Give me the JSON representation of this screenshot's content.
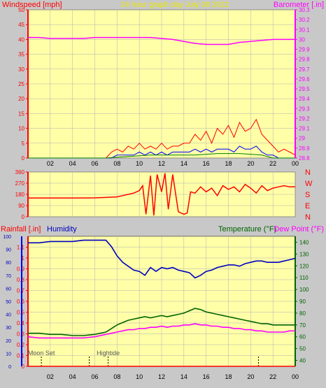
{
  "title": "24 hour graph day   July 08 2022",
  "colors": {
    "bg": "#c8c8c8",
    "plot_bg": "#ffffa8",
    "grid": "#b0b0b0",
    "red": "#ff0000",
    "blue": "#0000ff",
    "magenta": "#ff00ff",
    "green": "#006400",
    "darkgreen": "#008000",
    "navy": "#0000c0",
    "title": "#e8e800"
  },
  "chart_data": [
    {
      "id": "wind-baro",
      "type": "line",
      "left_label": "Windspeed [mph]",
      "right_label": "Barometer [.in]",
      "y_left_range": [
        0,
        50
      ],
      "y_left_ticks": [
        "0",
        "5",
        "10",
        "15",
        "20",
        "25",
        "30",
        "35",
        "40",
        "45",
        "50"
      ],
      "y_right_range": [
        28.8,
        30.3
      ],
      "y_right_ticks": [
        "28.8",
        "28.9",
        "29",
        "29.1",
        "29.2",
        "29.3",
        "29.4",
        "29.5",
        "29.6",
        "29.7",
        "29.8",
        "29.9",
        "30",
        "30.1",
        "30.2",
        "30.3"
      ],
      "x_ticks": [
        "02",
        "04",
        "06",
        "08",
        "10",
        "12",
        "14",
        "16",
        "18",
        "20",
        "22",
        "00"
      ],
      "series": [
        {
          "name": "Barometer",
          "axis": "right",
          "color": "magenta",
          "x": [
            0,
            1,
            2,
            3,
            4,
            5,
            6,
            7,
            8,
            9,
            10,
            11,
            12,
            13,
            14,
            15,
            16,
            17,
            18,
            19,
            20,
            21,
            22,
            23,
            24
          ],
          "y": [
            30.02,
            30.02,
            30.01,
            30.01,
            30.01,
            30.01,
            30.02,
            30.02,
            30.02,
            30.02,
            30.02,
            30.02,
            30.01,
            30.0,
            29.98,
            29.96,
            29.95,
            29.95,
            29.95,
            29.97,
            29.98,
            29.99,
            30.0,
            30.0,
            30.0
          ]
        },
        {
          "name": "Wind gust",
          "axis": "left",
          "color": "red",
          "x": [
            0,
            1,
            2,
            3,
            4,
            5,
            6,
            7,
            7.5,
            8,
            8.5,
            9,
            9.5,
            10,
            10.5,
            11,
            11.5,
            12,
            12.5,
            13,
            13.5,
            14,
            14.5,
            15,
            15.5,
            16,
            16.5,
            17,
            17.5,
            18,
            18.5,
            19,
            19.5,
            20,
            20.5,
            21,
            21.5,
            22,
            22.5,
            23,
            23.5,
            24
          ],
          "y": [
            0,
            0,
            0,
            0,
            0,
            0,
            0,
            0,
            2,
            3,
            2,
            4,
            3,
            5,
            3,
            4,
            3,
            5,
            3,
            4,
            4,
            5,
            5,
            8,
            6,
            9,
            5,
            10,
            8,
            11,
            7,
            12,
            9,
            10,
            13,
            8,
            6,
            4,
            2,
            3,
            2,
            1
          ]
        },
        {
          "name": "Wind average",
          "axis": "left",
          "color": "blue",
          "x": [
            0,
            1,
            2,
            3,
            4,
            5,
            6,
            7,
            7.5,
            8,
            8.5,
            9,
            9.5,
            10,
            10.5,
            11,
            11.5,
            12,
            12.5,
            13,
            13.5,
            14,
            14.5,
            15,
            15.5,
            16,
            16.5,
            17,
            17.5,
            18,
            18.5,
            19,
            19.5,
            20,
            20.5,
            21,
            21.5,
            22,
            22.5,
            23,
            23.5,
            24
          ],
          "y": [
            0,
            0,
            0,
            0,
            0,
            0,
            0,
            0,
            0,
            1,
            1,
            1,
            1,
            2,
            1,
            2,
            1,
            2,
            1,
            2,
            2,
            2,
            2,
            3,
            2,
            3,
            2,
            3,
            3,
            3,
            2,
            4,
            3,
            3,
            4,
            2,
            1,
            1,
            0,
            0,
            0,
            0
          ]
        },
        {
          "name": "Wind lull",
          "axis": "left",
          "color": "darkgreen",
          "x": [
            0,
            7,
            9,
            11,
            13,
            15,
            17,
            19,
            21,
            22,
            24
          ],
          "y": [
            0,
            0,
            0.5,
            1,
            1,
            1,
            1.5,
            1.5,
            1,
            0,
            0
          ]
        }
      ]
    },
    {
      "id": "direction",
      "type": "line",
      "left_label": "",
      "y_left_range": [
        0,
        360
      ],
      "y_left_ticks": [
        "0",
        "90",
        "180",
        "270",
        "360"
      ],
      "right_letters": [
        "N",
        "W",
        "S",
        "E",
        "N"
      ],
      "series": [
        {
          "name": "Wind direction",
          "color": "red",
          "x": [
            0,
            2,
            4,
            6,
            7,
            8,
            8.5,
            9,
            9.5,
            10,
            10.3,
            10.6,
            11,
            11.3,
            11.6,
            12,
            12.3,
            12.6,
            13,
            13.5,
            14,
            14.3,
            14.6,
            15,
            15.5,
            16,
            16.5,
            17,
            17.5,
            18,
            18.5,
            19,
            19.5,
            20,
            20.5,
            21,
            21.5,
            22,
            22.5,
            23,
            23.5,
            24
          ],
          "y": [
            150,
            150,
            150,
            152,
            155,
            160,
            170,
            180,
            190,
            210,
            250,
            20,
            330,
            10,
            340,
            200,
            350,
            60,
            340,
            40,
            20,
            30,
            200,
            190,
            240,
            200,
            230,
            170,
            250,
            220,
            240,
            200,
            260,
            230,
            190,
            250,
            210,
            230,
            240,
            250,
            240,
            240
          ]
        }
      ]
    },
    {
      "id": "rain-humidity-temp",
      "type": "line",
      "left_label_1": "Rainfall [.in]",
      "left_label_2": "Humidity",
      "right_label_1": "Temperature (°F)",
      "right_label_2": "Dew Point (°F)",
      "y_left_range": [
        0,
        1.2
      ],
      "y_left_ticks": [
        "0",
        "0.1",
        "0.2",
        "0.3",
        "0.4",
        "0.5",
        "0.6",
        "0.7",
        "0.8",
        "0.9",
        "1",
        "1.1"
      ],
      "y_hum_range": [
        0,
        100
      ],
      "y_hum_ticks": [
        "0",
        "10",
        "20",
        "30",
        "40",
        "50",
        "60",
        "70",
        "80",
        "90",
        "100"
      ],
      "y_right_range": [
        35,
        145
      ],
      "y_right_ticks": [
        "40",
        "50",
        "60",
        "70",
        "80",
        "90",
        "100",
        "110",
        "120",
        "130",
        "140"
      ],
      "x_ticks": [
        "02",
        "04",
        "06",
        "08",
        "10",
        "12",
        "14",
        "16",
        "18",
        "20",
        "22",
        "00"
      ],
      "markers": [
        {
          "label": "Moon Set",
          "x": 1.2
        },
        {
          "label": "Hightide",
          "x": 7.2
        }
      ],
      "series": [
        {
          "name": "Humidity",
          "axis": "hum",
          "color": "navy",
          "x": [
            0,
            1,
            2,
            3,
            4,
            5,
            6,
            7,
            7.5,
            8,
            8.5,
            9,
            9.5,
            10,
            10.5,
            11,
            11.5,
            12,
            12.5,
            13,
            13.5,
            14,
            14.5,
            15,
            15.5,
            16,
            16.5,
            17,
            17.5,
            18,
            18.5,
            19,
            19.5,
            20,
            20.5,
            21,
            21.5,
            22,
            22.5,
            23,
            23.5,
            24
          ],
          "y": [
            95,
            95,
            96,
            96,
            96,
            97,
            97,
            97,
            92,
            85,
            80,
            77,
            74,
            73,
            70,
            76,
            73,
            76,
            75,
            76,
            74,
            73,
            72,
            68,
            70,
            73,
            74,
            76,
            77,
            78,
            78,
            77,
            79,
            80,
            81,
            81,
            80,
            80,
            80,
            81,
            82,
            83
          ]
        },
        {
          "name": "Temperature",
          "axis": "right",
          "color": "green",
          "x": [
            0,
            1,
            2,
            3,
            4,
            5,
            6,
            7,
            7.5,
            8,
            8.5,
            9,
            9.5,
            10,
            10.5,
            11,
            11.5,
            12,
            12.5,
            13,
            13.5,
            14,
            14.5,
            15,
            15.5,
            16,
            16.5,
            17,
            17.5,
            18,
            18.5,
            19,
            19.5,
            20,
            20.5,
            21,
            21.5,
            22,
            22.5,
            23,
            23.5,
            24
          ],
          "y": [
            63,
            63,
            62,
            62,
            61,
            61,
            62,
            64,
            67,
            70,
            72,
            74,
            75,
            76,
            77,
            76,
            77,
            78,
            77,
            78,
            79,
            80,
            82,
            84,
            83,
            81,
            80,
            79,
            78,
            77,
            76,
            75,
            74,
            73,
            72,
            71,
            71,
            70,
            70,
            70,
            70,
            70
          ]
        },
        {
          "name": "Dew Point",
          "axis": "right",
          "color": "magenta",
          "x": [
            0,
            1,
            2,
            3,
            4,
            5,
            6,
            7,
            7.5,
            8,
            8.5,
            9,
            9.5,
            10,
            10.5,
            11,
            11.5,
            12,
            12.5,
            13,
            13.5,
            14,
            14.5,
            15,
            15.5,
            16,
            16.5,
            17,
            17.5,
            18,
            18.5,
            19,
            19.5,
            20,
            20.5,
            21,
            21.5,
            22,
            22.5,
            23,
            23.5,
            24
          ],
          "y": [
            60,
            59,
            59,
            59,
            59,
            59,
            60,
            62,
            63,
            64,
            65,
            66,
            66,
            67,
            67,
            68,
            68,
            69,
            68,
            69,
            69,
            70,
            70,
            71,
            70,
            70,
            69,
            69,
            68,
            68,
            67,
            67,
            66,
            66,
            65,
            65,
            64,
            64,
            64,
            64,
            65,
            65
          ]
        },
        {
          "name": "Rainfall",
          "axis": "left",
          "color": "red",
          "x": [
            0,
            24
          ],
          "y": [
            0,
            0
          ]
        }
      ]
    }
  ]
}
